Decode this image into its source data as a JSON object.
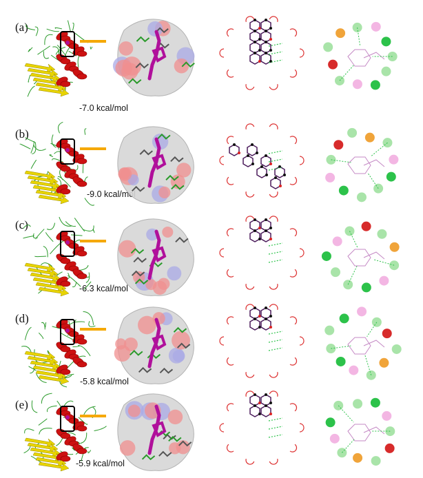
{
  "figure": {
    "panels": [
      {
        "label": "(a)",
        "binding_energy": "-7.0 kcal/mol"
      },
      {
        "label": "(b)",
        "binding_energy": "-9.0 kcal/mol"
      },
      {
        "label": "(c)",
        "binding_energy": "-6.3 kcal/mol"
      },
      {
        "label": "(d)",
        "binding_energy": "-5.8 kcal/mol"
      },
      {
        "label": "(e)",
        "binding_energy": "-5.9 kcal/mol"
      }
    ],
    "colors": {
      "helix": "#cc1111",
      "sheet": "#e8d400",
      "coil": "#2a9a2a",
      "ligand": "#b0109b",
      "pointer": "#f5a800",
      "surface_gray": "#d7d7d7",
      "surface_red": "#f08f8f",
      "surface_blue": "#a9a9e6",
      "hbond_green": "#2cc24a",
      "residue_green": "#a9e4a9",
      "residue_pink": "#f3b6e3",
      "residue_red": "#d72b2b",
      "residue_orange": "#f0a43a"
    }
  }
}
